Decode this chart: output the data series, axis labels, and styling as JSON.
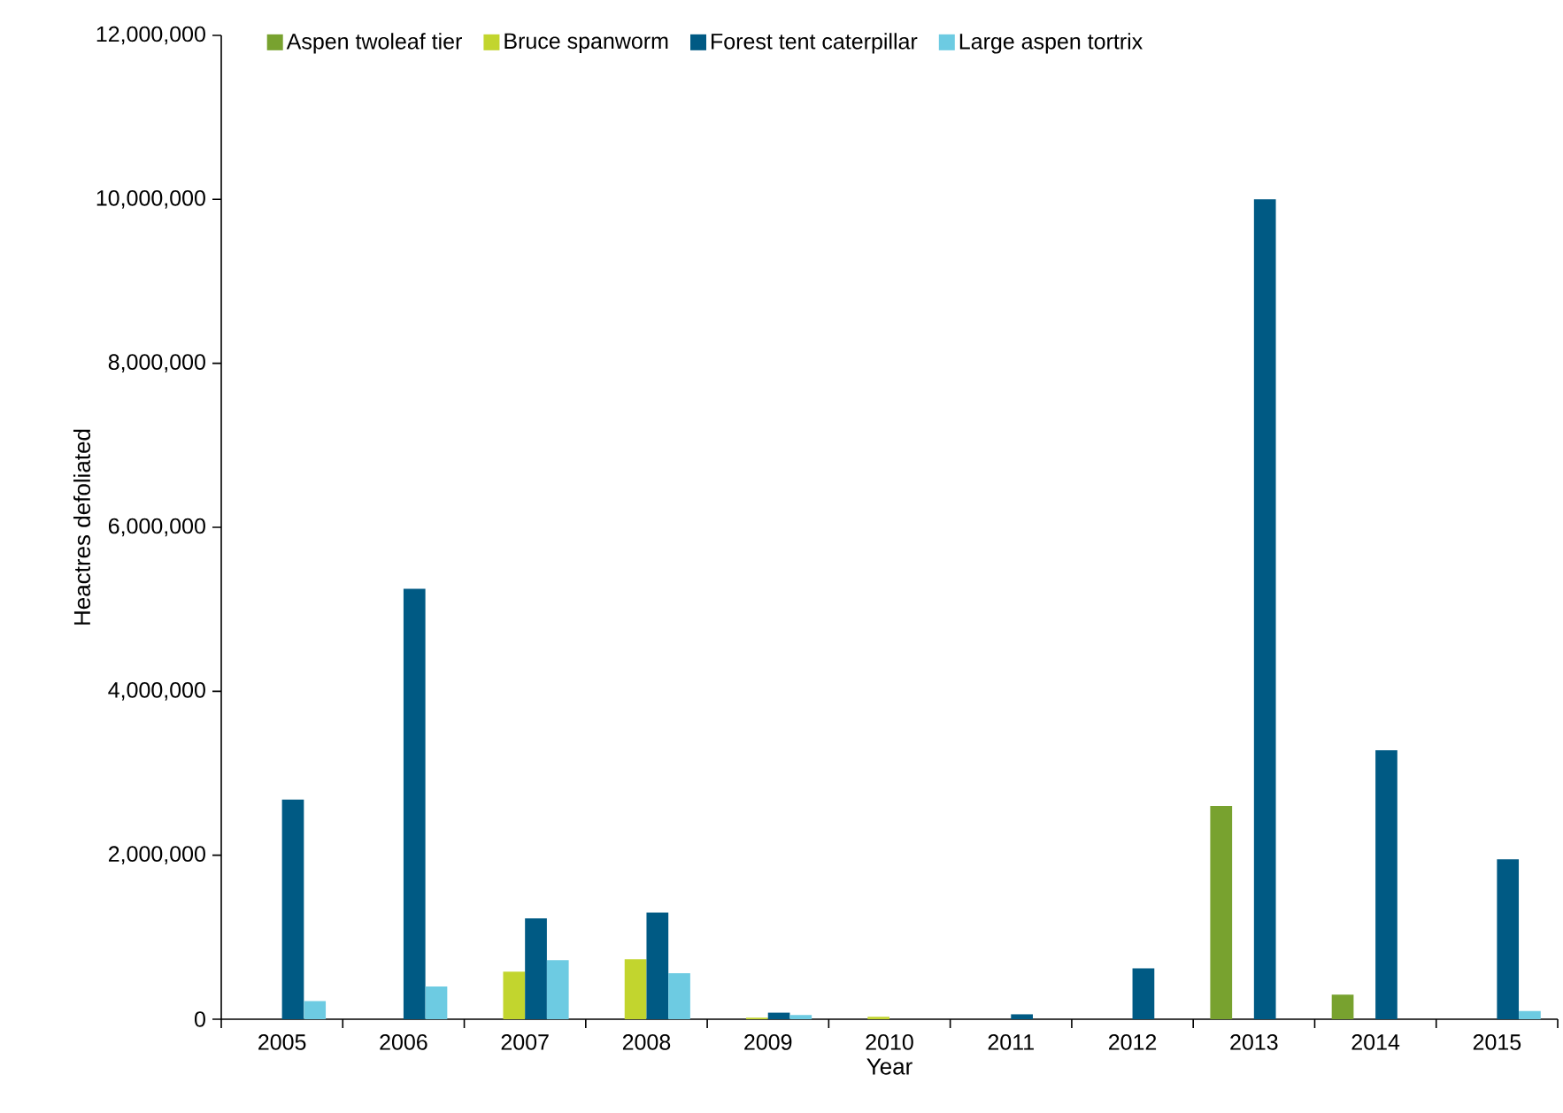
{
  "chart_data": {
    "type": "bar",
    "xlabel": "Year",
    "ylabel": "Heactres defoliated",
    "categories": [
      "2005",
      "2006",
      "2007",
      "2008",
      "2009",
      "2010",
      "2011",
      "2012",
      "2013",
      "2014",
      "2015"
    ],
    "series": [
      {
        "name": "Aspen twoleaf tier",
        "color": "#78a22f",
        "values": [
          0,
          0,
          0,
          0,
          0,
          0,
          0,
          0,
          2600000,
          300000,
          0
        ]
      },
      {
        "name": "Bruce spanworm",
        "color": "#c2d52e",
        "values": [
          0,
          0,
          580000,
          730000,
          20000,
          30000,
          0,
          0,
          0,
          0,
          0
        ]
      },
      {
        "name": "Forest tent caterpillar",
        "color": "#005a84",
        "values": [
          2680000,
          5250000,
          1230000,
          1300000,
          80000,
          0,
          60000,
          620000,
          10000000,
          3280000,
          1950000
        ]
      },
      {
        "name": "Large aspen tortrix",
        "color": "#6dcbe2",
        "values": [
          220000,
          400000,
          720000,
          560000,
          50000,
          0,
          0,
          0,
          0,
          0,
          100000
        ]
      }
    ],
    "ylim": [
      0,
      12000000
    ],
    "yticks": [
      {
        "value": 0,
        "label": "0"
      },
      {
        "value": 2000000,
        "label": "2,000,000"
      },
      {
        "value": 4000000,
        "label": "4,000,000"
      },
      {
        "value": 6000000,
        "label": "6,000,000"
      },
      {
        "value": 8000000,
        "label": "8,000,000"
      },
      {
        "value": 10000000,
        "label": "10,000,000"
      },
      {
        "value": 12000000,
        "label": "12,000,000"
      }
    ],
    "legend": "top",
    "grid": false
  }
}
